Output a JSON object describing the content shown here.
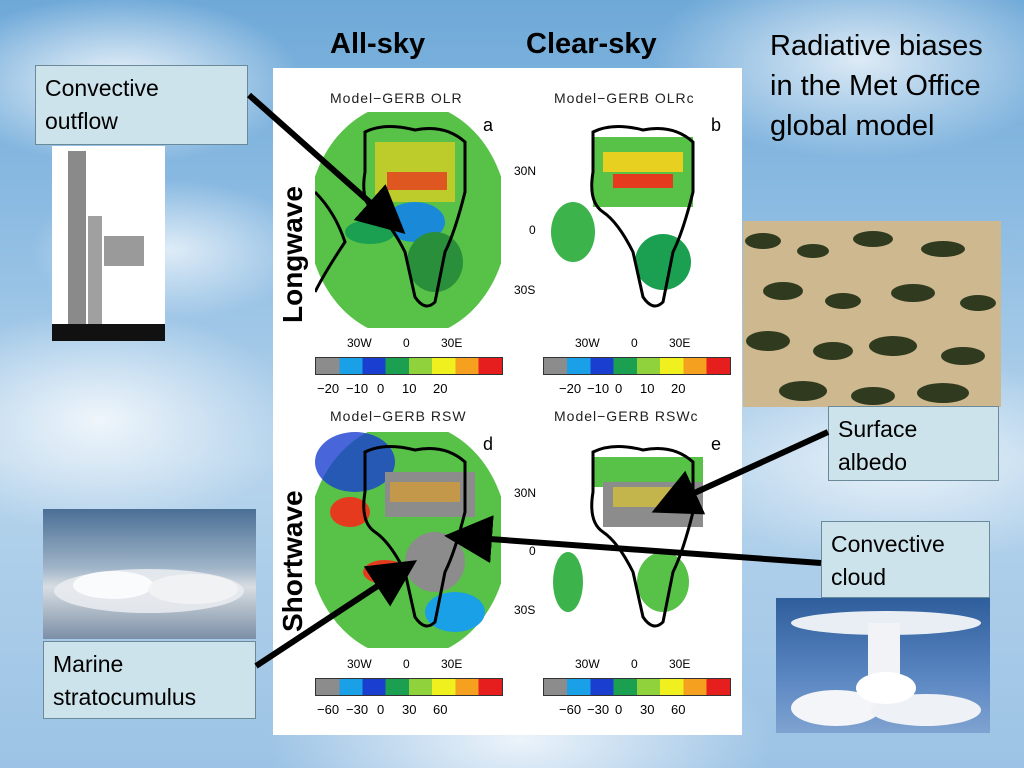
{
  "slide": {
    "title": "Radiative biases in the Met Office global model",
    "col_allsky": "All-sky",
    "col_clearsky": "Clear-sky",
    "row_longwave": "Longwave",
    "row_shortwave": "Shortwave"
  },
  "panels": {
    "a": {
      "title": "Model−GERB  OLR",
      "letter": "a"
    },
    "b": {
      "title": "Model−GERB  OLRc",
      "letter": "b"
    },
    "d": {
      "title": "Model−GERB  RSW",
      "letter": "d"
    },
    "e": {
      "title": "Model−GERB  RSWc",
      "letter": "e"
    }
  },
  "axes": {
    "lat_ticks": [
      "30N",
      "0",
      "30S"
    ],
    "lon_ticks": [
      "30W",
      "0",
      "30E"
    ]
  },
  "colorbars": {
    "longwave_ticks": [
      "−20",
      "−10",
      "0",
      "10",
      "20"
    ],
    "shortwave_ticks": [
      "−60",
      "−30",
      "0",
      "30",
      "60"
    ],
    "colors": [
      "#8c8c8c",
      "#1aa0e6",
      "#1a3fd0",
      "#1aa050",
      "#8fd23c",
      "#f0f01e",
      "#f5a01e",
      "#e61e1e"
    ]
  },
  "callouts": {
    "convective_outflow": "Convective outflow",
    "surface_albedo": "Surface albedo",
    "convective_cloud": "Convective cloud",
    "marine_stratocumulus": "Marine stratocumulus"
  },
  "colors": {
    "callout_fill": "#cde3ec",
    "arrow": "#000000"
  }
}
